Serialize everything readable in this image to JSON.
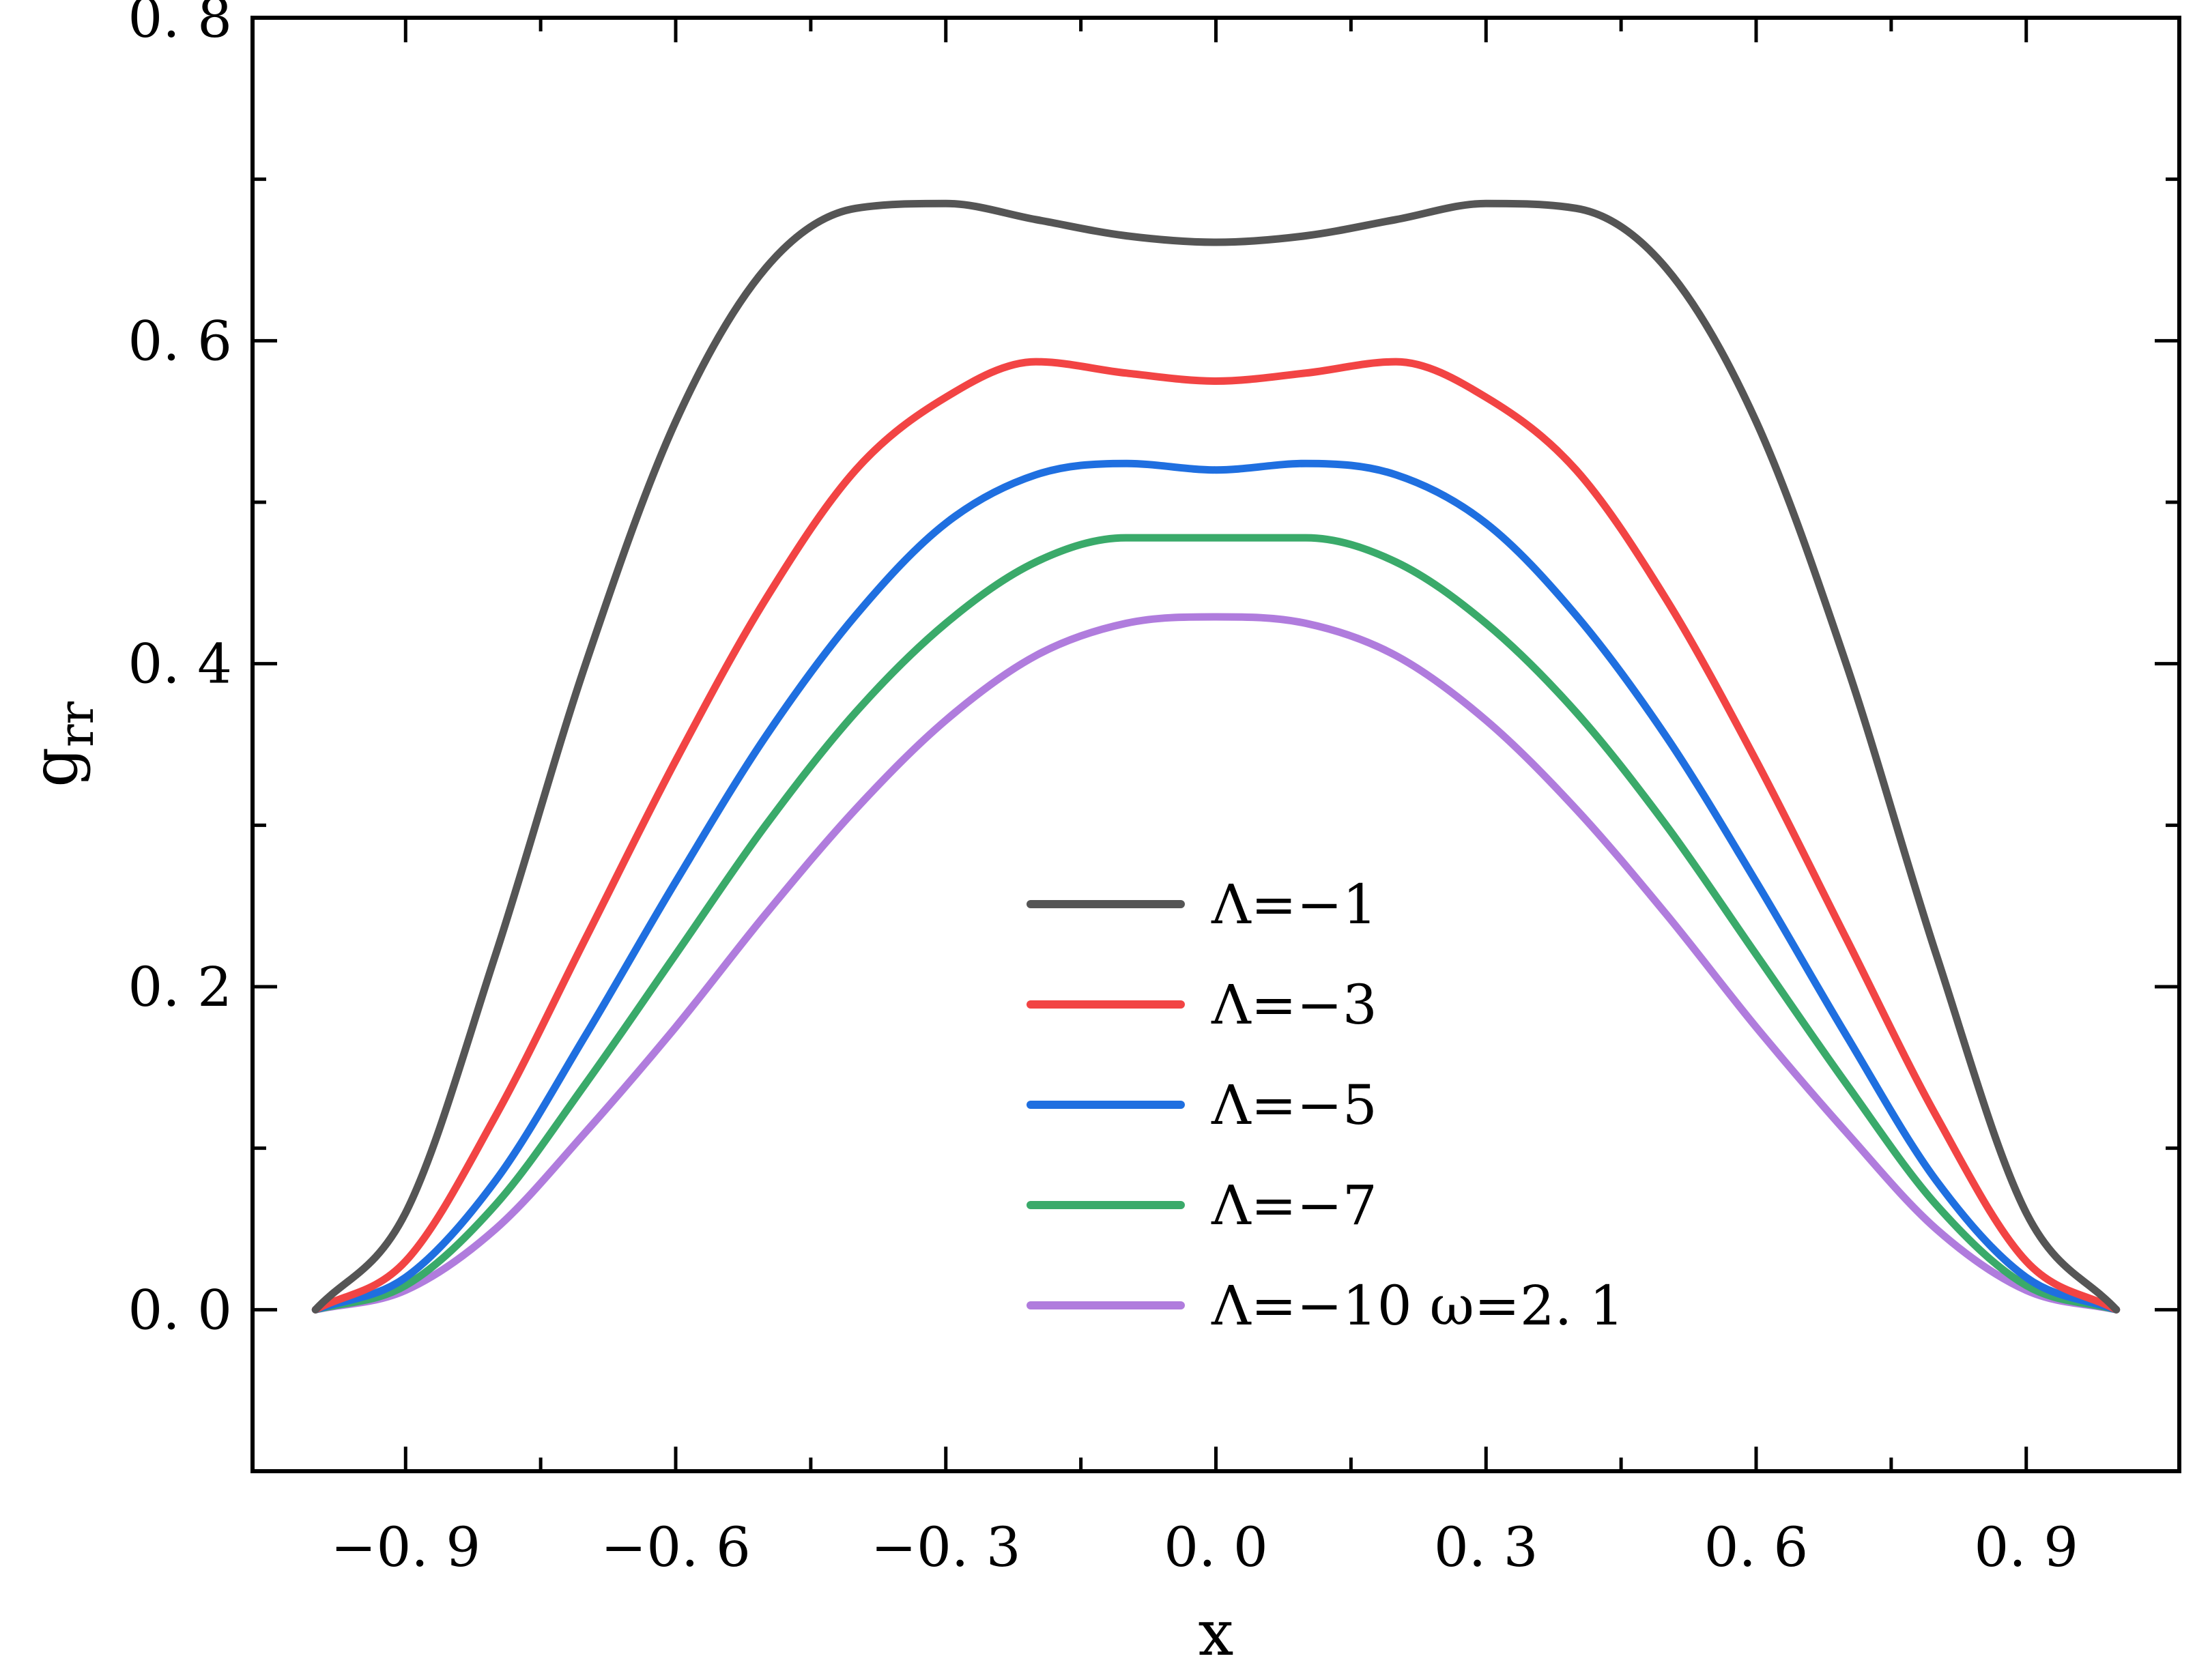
{
  "chart_data": {
    "type": "line",
    "title": "",
    "xlabel": "x",
    "ylabel_main": "g",
    "ylabel_sub": "rr",
    "xlim": [
      -1.07,
      1.07
    ],
    "ylim": [
      -0.1,
      0.8
    ],
    "xticks": [
      -0.9,
      -0.6,
      -0.3,
      0.0,
      0.3,
      0.6,
      0.9
    ],
    "xtick_labels": [
      "−0. 9",
      "−0. 6",
      "−0. 3",
      "0. 0",
      "0. 3",
      "0. 6",
      "0. 9"
    ],
    "x_minor_ticks": [
      -0.75,
      -0.45,
      -0.15,
      0.15,
      0.45,
      0.75
    ],
    "yticks": [
      0.0,
      0.2,
      0.4,
      0.6,
      0.8
    ],
    "ytick_labels": [
      "0. 0",
      "0. 2",
      "0. 4",
      "0. 6",
      "0. 8"
    ],
    "y_minor_ticks": [
      0.1,
      0.3,
      0.5,
      0.7
    ],
    "grid": false,
    "legend_position": "center-bottom",
    "annotation": "ω=2. 1",
    "x": [
      -1.0,
      -0.9,
      -0.8,
      -0.7,
      -0.6,
      -0.5,
      -0.4,
      -0.3,
      -0.2,
      -0.1,
      0.0,
      0.1,
      0.2,
      0.3,
      0.4,
      0.5,
      0.6,
      0.7,
      0.8,
      0.9,
      1.0
    ],
    "series": [
      {
        "name": "Λ=−1",
        "color": "#555555",
        "values": [
          0.0,
          0.06,
          0.22,
          0.4,
          0.55,
          0.645,
          0.682,
          0.685,
          0.675,
          0.665,
          0.661,
          0.665,
          0.675,
          0.685,
          0.682,
          0.645,
          0.55,
          0.4,
          0.22,
          0.06,
          0.0
        ]
      },
      {
        "name": "Λ=−3",
        "color": "#f24444",
        "values": [
          0.0,
          0.03,
          0.12,
          0.23,
          0.34,
          0.44,
          0.52,
          0.565,
          0.587,
          0.58,
          0.575,
          0.58,
          0.587,
          0.565,
          0.52,
          0.44,
          0.34,
          0.23,
          0.12,
          0.03,
          0.0
        ]
      },
      {
        "name": "Λ=−5",
        "color": "#1f6fe0",
        "values": [
          0.0,
          0.02,
          0.08,
          0.17,
          0.265,
          0.355,
          0.43,
          0.487,
          0.517,
          0.524,
          0.52,
          0.524,
          0.517,
          0.487,
          0.43,
          0.355,
          0.265,
          0.17,
          0.08,
          0.02,
          0.0
        ]
      },
      {
        "name": "Λ=−7",
        "color": "#3aaa6a",
        "values": [
          0.0,
          0.015,
          0.065,
          0.14,
          0.22,
          0.3,
          0.37,
          0.425,
          0.463,
          0.478,
          0.478,
          0.478,
          0.463,
          0.425,
          0.37,
          0.3,
          0.22,
          0.14,
          0.065,
          0.015,
          0.0
        ]
      },
      {
        "name": "Λ=−10",
        "color": "#b07cdd",
        "values": [
          0.0,
          0.012,
          0.05,
          0.11,
          0.175,
          0.245,
          0.31,
          0.365,
          0.405,
          0.425,
          0.429,
          0.425,
          0.405,
          0.365,
          0.31,
          0.245,
          0.175,
          0.11,
          0.05,
          0.012,
          0.0
        ]
      }
    ]
  }
}
